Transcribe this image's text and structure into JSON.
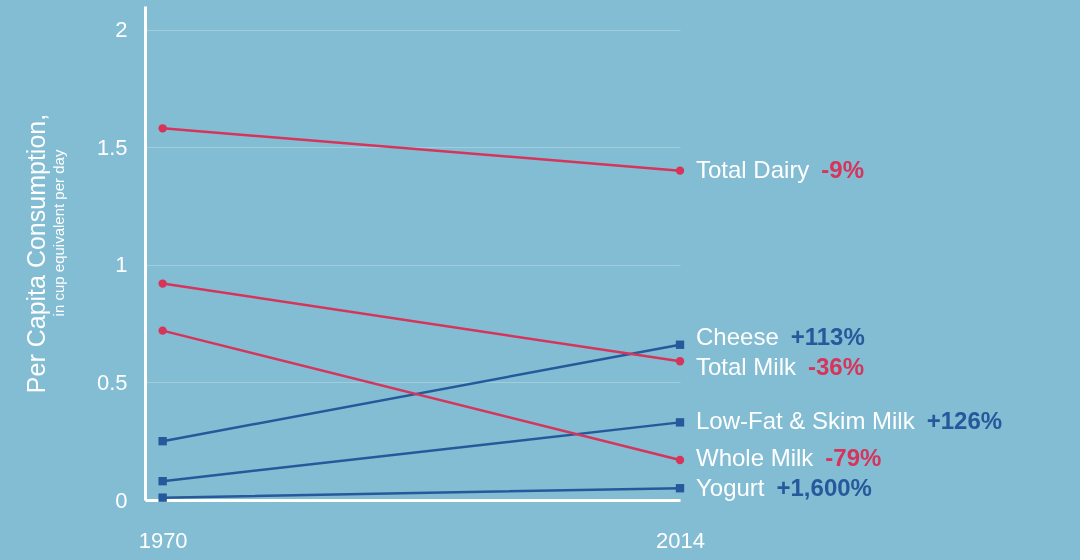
{
  "chart_data": {
    "type": "line",
    "ylabel": "Per Capita Consumption,",
    "x": [
      1970,
      2014
    ],
    "xlim": [
      1968.5,
      2014
    ],
    "xticks": [
      1970,
      2014
    ],
    "ylim": [
      0,
      2.1
    ],
    "yticks": [
      0,
      0.5,
      1,
      1.5,
      2
    ],
    "grid": "y",
    "legend": "right",
    "series": [
      {
        "name": "Total Dairy",
        "color": "#d6345a",
        "marker": "circle",
        "values": [
          1.58,
          1.4
        ]
      },
      {
        "name": "Cheese",
        "color": "#245a9b",
        "marker": "square",
        "values": [
          0.25,
          0.66
        ]
      },
      {
        "name": "Total Milk",
        "color": "#d6345a",
        "marker": "circle",
        "values": [
          0.92,
          0.59
        ]
      },
      {
        "name": "Low-Fat & Skim Milk",
        "color": "#245a9b",
        "marker": "square",
        "values": [
          0.08,
          0.33
        ]
      },
      {
        "name": "Whole Milk",
        "color": "#d6345a",
        "marker": "circle",
        "values": [
          0.72,
          0.17
        ]
      },
      {
        "name": "Yogurt",
        "color": "#245a9b",
        "marker": "square",
        "values": [
          0.01,
          0.05
        ]
      }
    ],
    "annotations": [
      "in cup equivalent per day",
      "-9%",
      "+113%",
      "-36%",
      "+126%",
      "-79%",
      "+1,600%"
    ]
  }
}
